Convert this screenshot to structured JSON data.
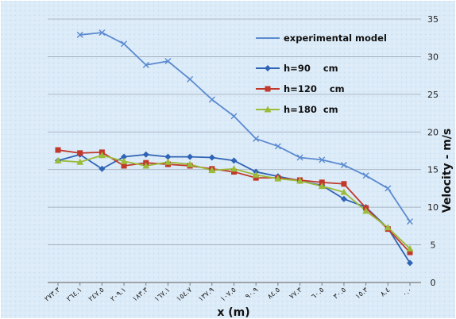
{
  "chart_data": {
    "type": "line",
    "xlabel": "x (m)",
    "ylabel": "Velocity - m/s",
    "ylim": [
      0,
      35
    ],
    "y_ticks": [
      0,
      5,
      10,
      15,
      20,
      25,
      30,
      35
    ],
    "y_axis_side": "right",
    "x_reversed": true,
    "grid": "horizontal",
    "legend_position": "top-right",
    "categories": [
      "٢٧٣.٣",
      "٢٦٤.١",
      "٢٤٧.٥",
      "٢٠٩.١",
      "١٨٣.٣",
      "١٦٧.١",
      "١٥٤.٧",
      "١٣٧.٩",
      "١٠٧.٥",
      "٩٠.٩",
      "٨٤.٥",
      "٧٧.٣",
      "٦٠.٥",
      "٣٠.٥",
      "١٥.٣",
      "٨.٤",
      "٠.٠"
    ],
    "series": [
      {
        "name": "experimental model",
        "color": "#5b8ad0",
        "marker": "x",
        "values": [
          null,
          32.9,
          33.2,
          31.7,
          28.9,
          29.4,
          27.0,
          24.3,
          22.1,
          19.1,
          18.1,
          16.6,
          16.3,
          15.6,
          14.2,
          12.5,
          8.1
        ]
      },
      {
        "name": "h=90    cm",
        "color": "#2f63b5",
        "marker": "diamond",
        "values": [
          16.2,
          17.0,
          15.1,
          16.7,
          17.0,
          16.7,
          16.7,
          16.6,
          16.2,
          14.7,
          14.1,
          13.5,
          12.9,
          11.1,
          10.0,
          7.2,
          2.6
        ]
      },
      {
        "name": "h=120    cm",
        "color": "#c0392b",
        "marker": "square",
        "values": [
          17.6,
          17.2,
          17.3,
          15.5,
          15.9,
          15.7,
          15.5,
          15.1,
          14.7,
          13.9,
          13.9,
          13.6,
          13.3,
          13.1,
          9.9,
          7.1,
          4.0
        ]
      },
      {
        "name": "h=180  cm",
        "color": "#9bbb3a",
        "marker": "triangle",
        "values": [
          16.2,
          16.0,
          16.9,
          16.1,
          15.5,
          16.0,
          15.7,
          14.9,
          15.1,
          14.3,
          13.8,
          13.5,
          12.8,
          12.0,
          9.5,
          7.3,
          4.5
        ]
      }
    ]
  }
}
